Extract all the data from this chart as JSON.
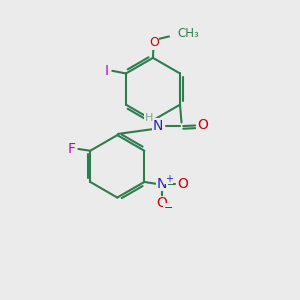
{
  "bg_color": "#ebebeb",
  "bond_color": "#2e7d4f",
  "bond_width": 1.5,
  "atom_colors": {
    "C": "#2e7d4f",
    "O": "#cc0000",
    "N": "#2222cc",
    "H": "#7aaa8a",
    "F": "#cc00cc",
    "I": "#cc00cc",
    "Nplus": "#2222cc",
    "Ominus": "#cc0000"
  },
  "font_size": 9,
  "fig_size": [
    3.0,
    3.0
  ],
  "dpi": 100
}
